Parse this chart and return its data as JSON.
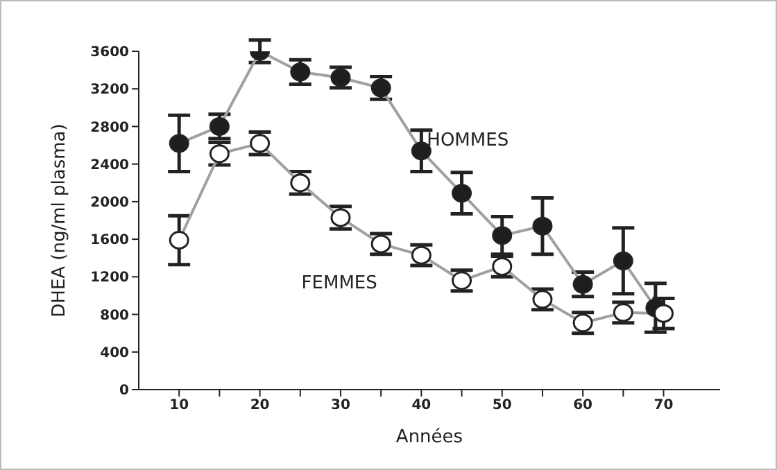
{
  "chart_data": {
    "type": "line",
    "xlabel": "Années",
    "ylabel": "DHEA (ng/ml plasma)",
    "xlim": [
      5,
      77
    ],
    "xticks": [
      10,
      {
        "value": 15,
        "label": null
      },
      20,
      {
        "value": 25,
        "label": null
      },
      30,
      {
        "value": 35,
        "label": null
      },
      40,
      {
        "value": 45,
        "label": null
      },
      50,
      {
        "value": 55,
        "label": null
      },
      60,
      {
        "value": 65,
        "label": null
      },
      70
    ],
    "ylim": [
      0,
      3600
    ],
    "yticks": [
      0,
      400,
      800,
      1200,
      1600,
      2000,
      2400,
      2800,
      3200,
      3600
    ],
    "grid": false,
    "legend": false,
    "marker": "circle",
    "line_style": "solid",
    "series": [
      {
        "name": "HOMMES",
        "color": "#1e1e1e",
        "x": [
          10,
          15,
          20,
          25,
          30,
          35,
          40,
          45,
          50,
          55,
          60,
          65,
          69
        ],
        "values": [
          2620,
          2800,
          3600,
          3380,
          3320,
          3210,
          2540,
          2090,
          1640,
          1740,
          1120,
          1370,
          870
        ],
        "errors": [
          300,
          130,
          120,
          130,
          110,
          120,
          220,
          220,
          200,
          300,
          130,
          350,
          260
        ]
      },
      {
        "name": "FEMMES",
        "color": "#ffffff",
        "x": [
          10,
          15,
          20,
          25,
          30,
          35,
          40,
          45,
          50,
          55,
          60,
          65,
          70
        ],
        "values": [
          1590,
          2510,
          2620,
          2200,
          1830,
          1550,
          1430,
          1160,
          1310,
          960,
          710,
          820,
          810
        ],
        "errors": [
          260,
          120,
          120,
          120,
          120,
          110,
          110,
          110,
          110,
          110,
          110,
          110,
          160
        ]
      }
    ]
  }
}
